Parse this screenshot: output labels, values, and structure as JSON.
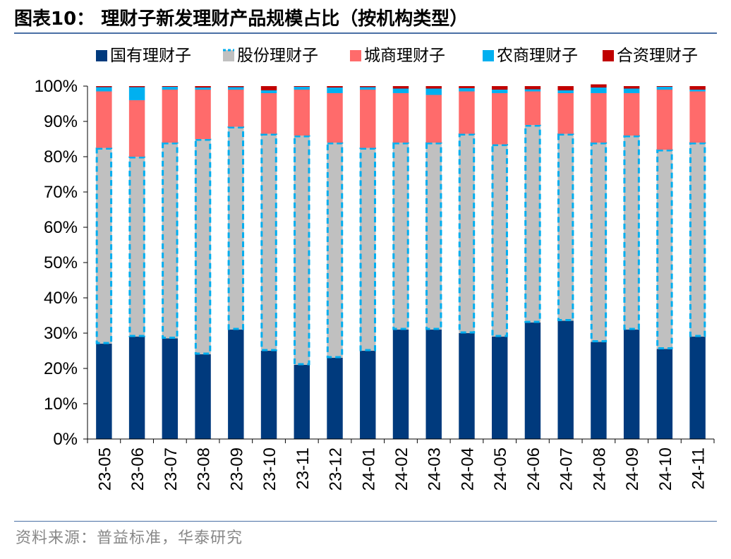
{
  "figure": {
    "title": "图表10：  理财子新发理财产品规模占比（按机构类型）",
    "source": "资料来源：普益标准，华泰研究"
  },
  "chart_data": {
    "type": "bar",
    "stacked": true,
    "unit": "%",
    "ylim": [
      0,
      100
    ],
    "yticks": [
      "0%",
      "10%",
      "20%",
      "30%",
      "40%",
      "50%",
      "60%",
      "70%",
      "80%",
      "90%",
      "100%"
    ],
    "categories": [
      "23-05",
      "23-06",
      "23-07",
      "23-08",
      "23-09",
      "23-10",
      "23-11",
      "23-12",
      "24-01",
      "24-02",
      "24-03",
      "24-04",
      "24-05",
      "24-06",
      "24-07",
      "24-08",
      "24-09",
      "24-10",
      "24-11"
    ],
    "series": [
      {
        "name": "国有理财子",
        "color": "#003a7d",
        "values": [
          27,
          29,
          28.5,
          24,
          31,
          25,
          21,
          23,
          25,
          31,
          31,
          30,
          29,
          33,
          33.5,
          27.5,
          31,
          25.5,
          29
        ]
      },
      {
        "name": "股份理财子",
        "color": "#c0c0c0",
        "dashed": "#00aeef",
        "values": [
          55.5,
          51,
          55.5,
          61,
          57.5,
          61.5,
          65,
          61,
          57.5,
          53,
          53,
          56.5,
          54.5,
          56,
          53,
          56.5,
          55,
          56.5,
          55
        ]
      },
      {
        "name": "城商理财子",
        "color": "#ff6b6b",
        "values": [
          16,
          16,
          15,
          14,
          10.5,
          11.5,
          13,
          14,
          16.5,
          14,
          13.5,
          12,
          14.5,
          9.5,
          11.5,
          14,
          12,
          17,
          14.5
        ]
      },
      {
        "name": "农商理财子",
        "color": "#00b0f0",
        "values": [
          1.2,
          3.7,
          0.8,
          0.6,
          0.7,
          0.8,
          0.8,
          1.6,
          0.7,
          1.3,
          1.8,
          0.9,
          1.0,
          0.6,
          0.8,
          1.6,
          1.3,
          0.8,
          0.5
        ]
      },
      {
        "name": "合资理财子",
        "color": "#c00000",
        "values": [
          0.3,
          0.3,
          0.2,
          0.4,
          0.3,
          1.2,
          0.2,
          0.4,
          0.3,
          0.7,
          0.7,
          0.6,
          1.0,
          0.9,
          1.2,
          0.9,
          0.7,
          0.2,
          1.0
        ]
      }
    ],
    "legend_position": "top-right",
    "grid": false
  }
}
